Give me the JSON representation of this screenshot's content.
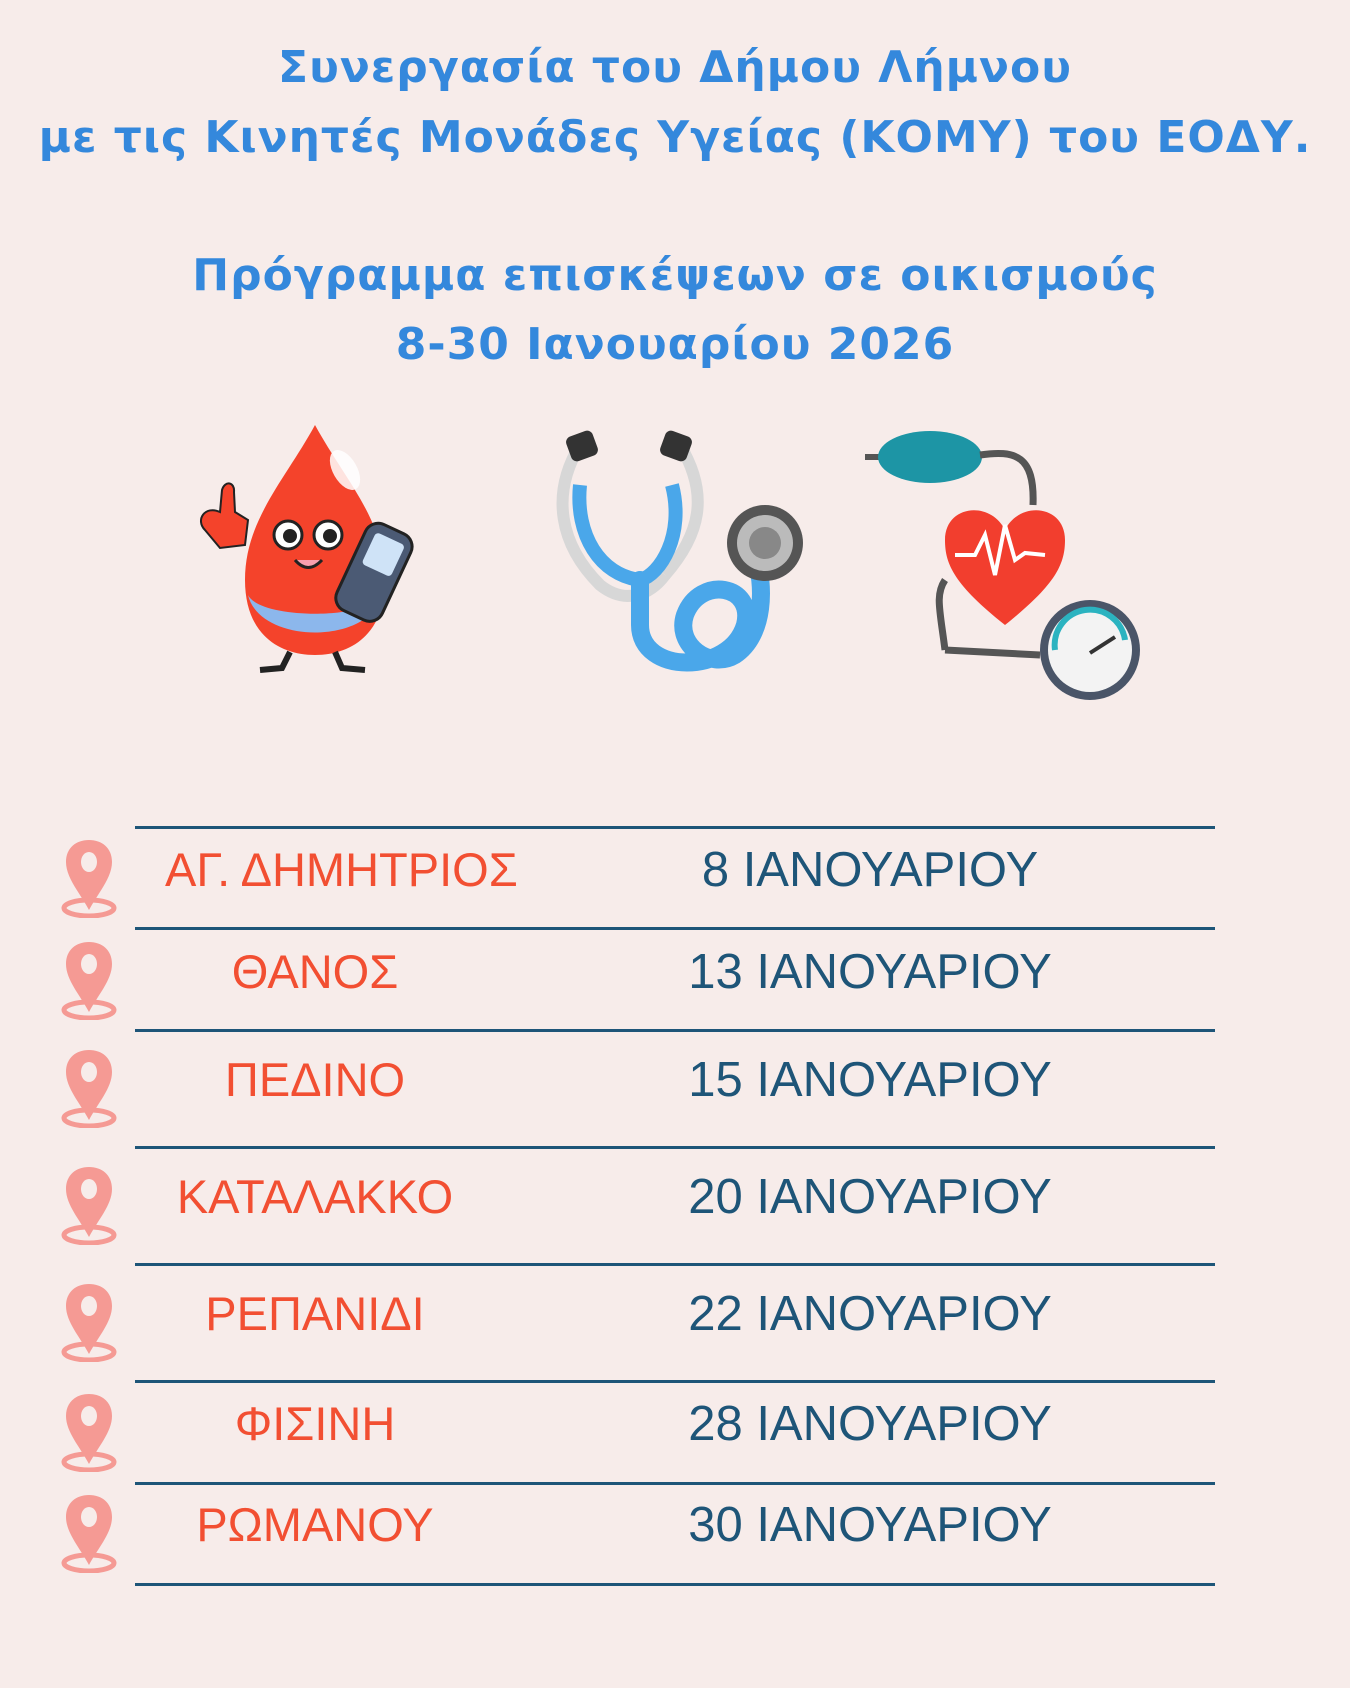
{
  "header": {
    "line1": "Συνεργασία του Δήμου Λήμνου",
    "line2": "με τις Κινητές Μονάδες Υγείας (ΚΟΜΥ) του ΕΟΔΥ.",
    "line3": "Πρόγραμμα επισκέψεων σε οικισμούς",
    "line4": "8-30 Ιανουαρίου 2026"
  },
  "illustrations": [
    "blood-drop-glucometer-icon",
    "stethoscope-icon",
    "blood-pressure-monitor-icon"
  ],
  "schedule": [
    {
      "place": "ΑΓ. ΔΗΜΗΤΡΙΟΣ",
      "date": "8 ΙΑΝΟΥΑΡΙΟΥ"
    },
    {
      "place": "ΘΑΝΟΣ",
      "date": "13 ΙΑΝΟΥΑΡΙΟΥ"
    },
    {
      "place": "ΠΕΔΙΝΟ",
      "date": "15 ΙΑΝΟΥΑΡΙΟΥ"
    },
    {
      "place": "ΚΑΤΑΛΑΚΚΟ",
      "date": "20 ΙΑΝΟΥΑΡΙΟΥ"
    },
    {
      "place": "ΡΕΠΑΝΙΔΙ",
      "date": "22 ΙΑΝΟΥΑΡΙΟΥ"
    },
    {
      "place": "ΦΙΣΙΝΗ",
      "date": "28 ΙΑΝΟΥΑΡΙΟΥ"
    },
    {
      "place": "ΡΩΜΑΝΟΥ",
      "date": "30 ΙΑΝΟΥΑΡΙΟΥ"
    }
  ],
  "colors": {
    "title": "#3488dc",
    "place": "#f24f32",
    "date": "#1e5578",
    "background": "#f7ecea",
    "pin": "#f59a94"
  }
}
